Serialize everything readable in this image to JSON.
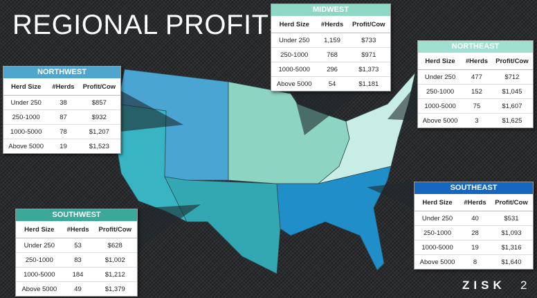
{
  "title": "REGIONAL PROFITS",
  "regions": [
    {
      "name": "MIDWEST",
      "columns": [
        "Herd Size",
        "#Herds",
        "Profit/Cow"
      ],
      "rows": [
        [
          "Under 250",
          "1,159",
          "$733"
        ],
        [
          "250-1000",
          "768",
          "$971"
        ],
        [
          "1000-5000",
          "296",
          "$1,373"
        ],
        [
          "Above 5000",
          "54",
          "$1,181"
        ]
      ]
    },
    {
      "name": "NORTHEAST",
      "columns": [
        "Herd Size",
        "#Herds",
        "Profit/Cow"
      ],
      "rows": [
        [
          "Under 250",
          "477",
          "$712"
        ],
        [
          "250-1000",
          "152",
          "$1,045"
        ],
        [
          "1000-5000",
          "75",
          "$1,607"
        ],
        [
          "Above 5000",
          "3",
          "$1,625"
        ]
      ]
    },
    {
      "name": "NORTHWEST",
      "columns": [
        "Herd Size",
        "#Herds",
        "Profit/Cow"
      ],
      "rows": [
        [
          "Under 250",
          "38",
          "$857"
        ],
        [
          "250-1000",
          "87",
          "$932"
        ],
        [
          "1000-5000",
          "78",
          "$1,207"
        ],
        [
          "Above 5000",
          "19",
          "$1,523"
        ]
      ]
    },
    {
      "name": "SOUTHWEST",
      "columns": [
        "Herd Size",
        "#Herds",
        "Profit/Cow"
      ],
      "rows": [
        [
          "Under 250",
          "53",
          "$628"
        ],
        [
          "250-1000",
          "83",
          "$1,002"
        ],
        [
          "1000-5000",
          "184",
          "$1,212"
        ],
        [
          "Above 5000",
          "49",
          "$1,379"
        ]
      ]
    },
    {
      "name": "SOUTHEAST",
      "columns": [
        "Herd Size",
        "#Herds",
        "Profit/Cow"
      ],
      "rows": [
        [
          "Under 250",
          "40",
          "$531"
        ],
        [
          "250-1000",
          "28",
          "$1,093"
        ],
        [
          "1000-5000",
          "19",
          "$1,316"
        ],
        [
          "Above 5000",
          "8",
          "$1,640"
        ]
      ]
    }
  ],
  "footer": {
    "logo": "ZISK",
    "page": "2"
  }
}
